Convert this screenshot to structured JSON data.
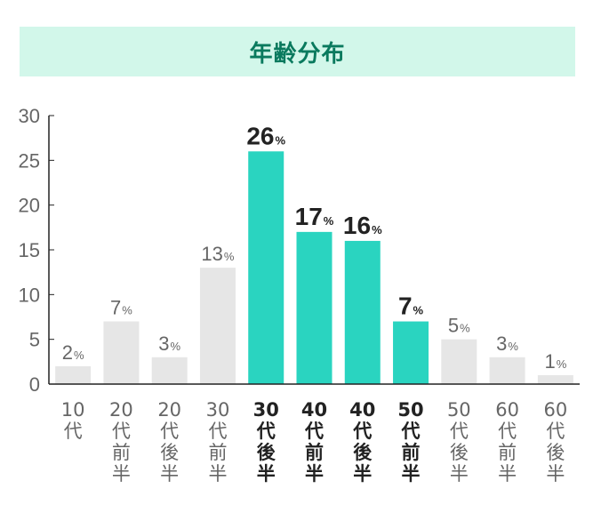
{
  "chart_data": {
    "type": "bar",
    "title": "年齢分布",
    "xlabel": "",
    "ylabel": "",
    "ylim": [
      0,
      30
    ],
    "yticks": [
      0,
      5,
      10,
      15,
      20,
      25,
      30
    ],
    "value_suffix": "%",
    "categories": [
      {
        "label": [
          "10",
          "代"
        ],
        "value": 2,
        "highlight": false
      },
      {
        "label": [
          "20",
          "代",
          "前",
          "半"
        ],
        "value": 7,
        "highlight": false
      },
      {
        "label": [
          "20",
          "代",
          "後",
          "半"
        ],
        "value": 3,
        "highlight": false
      },
      {
        "label": [
          "30",
          "代",
          "前",
          "半"
        ],
        "value": 13,
        "highlight": false
      },
      {
        "label": [
          "30",
          "代",
          "後",
          "半"
        ],
        "value": 26,
        "highlight": true
      },
      {
        "label": [
          "40",
          "代",
          "前",
          "半"
        ],
        "value": 17,
        "highlight": true
      },
      {
        "label": [
          "40",
          "代",
          "後",
          "半"
        ],
        "value": 16,
        "highlight": true
      },
      {
        "label": [
          "50",
          "代",
          "前",
          "半"
        ],
        "value": 7,
        "highlight": true
      },
      {
        "label": [
          "50",
          "代",
          "後",
          "半"
        ],
        "value": 5,
        "highlight": false
      },
      {
        "label": [
          "60",
          "代",
          "前",
          "半"
        ],
        "value": 3,
        "highlight": false
      },
      {
        "label": [
          "60",
          "代",
          "後",
          "半"
        ],
        "value": 1,
        "highlight": false
      }
    ],
    "colors": {
      "highlight_bar": "#2ad4c0",
      "normal_bar": "#e6e6e6",
      "highlight_text": "#222222",
      "normal_text": "#666666",
      "axis": "#222222"
    }
  }
}
